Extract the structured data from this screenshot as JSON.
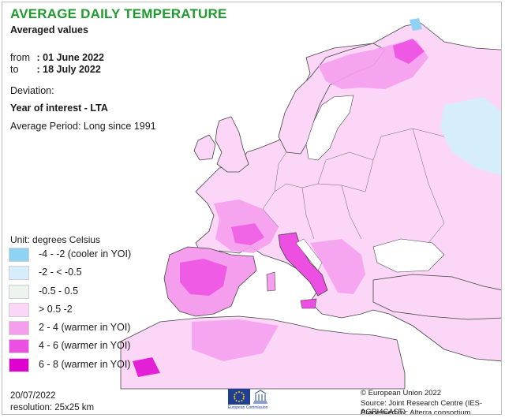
{
  "header": {
    "title": "AVERAGE DAILY TEMPERATURE",
    "subtitle": "Averaged values"
  },
  "period": {
    "from_label": "from",
    "from_value": ": 01 June 2022",
    "to_label": "to",
    "to_value": ": 18 July 2022"
  },
  "deviation": {
    "label": "Deviation:",
    "mode": "Year of interest - LTA",
    "average_period": "Average Period: Long since 1991"
  },
  "legend": {
    "unit": "Unit: degrees Celsius",
    "items": [
      {
        "label": "-4 - -2 (cooler in YOI)",
        "color": "#8fd3f4"
      },
      {
        "label": "-2 - < -0.5",
        "color": "#d6eefb"
      },
      {
        "label": "-0.5 - 0.5",
        "color": "#eef2ef"
      },
      {
        "label": "> 0.5 -2",
        "color": "#fbd6f6"
      },
      {
        "label": "2 - 4 (warmer in YOI)",
        "color": "#f59eee"
      },
      {
        "label": "4 - 6 (warmer in YOI)",
        "color": "#ee4fe3"
      },
      {
        "label": "6 - 8 (warmer in YOI)",
        "color": "#de00cf"
      }
    ]
  },
  "footer": {
    "date": "20/07/2022",
    "resolution": "resolution: 25x25 km",
    "copyright": "© European Union 2022",
    "source": "Source: Joint Research Centre (IES-AGRI4CAST)",
    "processed": "Processed by: Alterra consortium",
    "logo_text": "European Commission"
  },
  "colors": {
    "title": "#1f9a2e",
    "land_base": "#fbd6f6",
    "warm_2_4": "#f59eee",
    "warm_4_6": "#ee4fe3",
    "warm_6_8": "#de00cf",
    "cool": "#d6eefb",
    "neutral": "#eef2ef",
    "borders": "#555555"
  }
}
